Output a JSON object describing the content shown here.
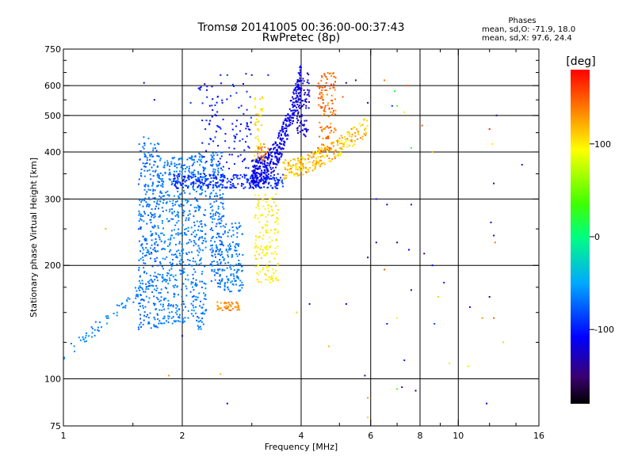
{
  "header": {
    "title_line1": "Tromsø 20141005 00:36:00-00:37:43",
    "title_line2": "RwPretec (8p)",
    "phases_label": "Phases",
    "phase_o": "mean, sd,O: -71.9, 18.0",
    "phase_x": "mean, sd,X:  97.6, 24.4"
  },
  "colorbar": {
    "label": "[deg]",
    "tick_labels": [
      "100",
      "0",
      "-100"
    ],
    "tick_values": [
      100,
      0,
      -100
    ],
    "range": [
      -180,
      180
    ]
  },
  "chart_data": {
    "type": "scatter",
    "xlabel": "Frequency [MHz]",
    "ylabel": "Stationary phase Virtual Height [km]",
    "xscale": "log",
    "yscale": "log",
    "xlim": [
      1,
      16
    ],
    "ylim": [
      75,
      750
    ],
    "xticks": [
      1,
      2,
      4,
      6,
      8,
      10,
      16
    ],
    "xtick_labels": [
      "1",
      "2",
      "4",
      "6",
      "8",
      "10",
      "16"
    ],
    "xgrid": [
      2,
      4,
      6,
      8,
      10
    ],
    "xminor": [
      1.5,
      3,
      5,
      7,
      9,
      12,
      14
    ],
    "yticks": [
      75,
      100,
      200,
      300,
      400,
      500,
      600,
      750
    ],
    "ytick_labels": [
      "75",
      "100",
      "200",
      "300",
      "400",
      "500",
      "600",
      "750"
    ],
    "ygrid": [
      100,
      200,
      300,
      400,
      500,
      600
    ],
    "yminor": [
      125,
      150,
      175,
      250,
      350,
      450,
      550,
      650,
      700
    ],
    "grid": true,
    "clusters": [
      {
        "name": "O low F-trace",
        "f": [
          1.0,
          1.7
        ],
        "h": [
          115,
          185
        ],
        "phase": [
          -70,
          -55
        ],
        "n": 70,
        "curve": "rise"
      },
      {
        "name": "O F1 band 1",
        "f": [
          1.55,
          1.75
        ],
        "h": [
          135,
          440
        ],
        "phase": [
          -80,
          -60
        ],
        "n": 320
      },
      {
        "name": "O F1 band 2",
        "f": [
          1.75,
          2.05
        ],
        "h": [
          140,
          390
        ],
        "phase": [
          -75,
          -55
        ],
        "n": 360
      },
      {
        "name": "O F1 band 3",
        "f": [
          2.05,
          2.3
        ],
        "h": [
          135,
          400
        ],
        "phase": [
          -78,
          -55
        ],
        "n": 260
      },
      {
        "name": "O F1 band 4",
        "f": [
          2.35,
          2.55
        ],
        "h": [
          175,
          400
        ],
        "phase": [
          -80,
          -60
        ],
        "n": 200
      },
      {
        "name": "O F1 band 5",
        "f": [
          2.55,
          2.85
        ],
        "h": [
          170,
          260
        ],
        "phase": [
          -72,
          -58
        ],
        "n": 120
      },
      {
        "name": "O F2 base",
        "f": [
          1.9,
          3.6
        ],
        "h": [
          320,
          350
        ],
        "phase": [
          -105,
          -85
        ],
        "n": 260
      },
      {
        "name": "O F2 rise",
        "f": [
          3.0,
          4.0
        ],
        "h": [
          350,
          640
        ],
        "phase": [
          -125,
          -100
        ],
        "n": 420,
        "curve": "cusp"
      },
      {
        "name": "O F2 upper",
        "f": [
          2.2,
          3.0
        ],
        "h": [
          360,
          620
        ],
        "phase": [
          -110,
          -90
        ],
        "n": 110
      },
      {
        "name": "O cusp top",
        "f": [
          3.9,
          4.2
        ],
        "h": [
          440,
          650
        ],
        "phase": [
          -130,
          -115
        ],
        "n": 90
      },
      {
        "name": "X F2 trace",
        "f": [
          3.6,
          5.9
        ],
        "h": [
          360,
          470
        ],
        "phase": [
          90,
          140
        ],
        "n": 260,
        "curve": "xrise"
      },
      {
        "name": "X F2 upper",
        "f": [
          4.4,
          4.9
        ],
        "h": [
          400,
          650
        ],
        "phase": [
          125,
          160
        ],
        "n": 120
      },
      {
        "name": "X F1 lower",
        "f": [
          3.05,
          3.5
        ],
        "h": [
          180,
          310
        ],
        "phase": [
          90,
          110
        ],
        "n": 150
      },
      {
        "name": "X F1 spur",
        "f": [
          3.05,
          3.2
        ],
        "h": [
          380,
          560
        ],
        "phase": [
          95,
          115
        ],
        "n": 40
      },
      {
        "name": "X low echoes",
        "f": [
          2.45,
          2.8
        ],
        "h": [
          152,
          160
        ],
        "phase": [
          125,
          145
        ],
        "n": 45
      },
      {
        "name": "X orange spur",
        "f": [
          3.1,
          3.3
        ],
        "h": [
          380,
          420
        ],
        "phase": [
          135,
          150
        ],
        "n": 25
      }
    ],
    "scatter_points": [
      {
        "f": 1.6,
        "h": 610,
        "phase": -120
      },
      {
        "f": 1.7,
        "h": 550,
        "phase": -110
      },
      {
        "f": 2.1,
        "h": 540,
        "phase": -90
      },
      {
        "f": 2.5,
        "h": 640,
        "phase": -100
      },
      {
        "f": 2.6,
        "h": 640,
        "phase": -90
      },
      {
        "f": 2.9,
        "h": 645,
        "phase": -100
      },
      {
        "f": 3.0,
        "h": 640,
        "phase": -120
      },
      {
        "f": 3.3,
        "h": 640,
        "phase": -100
      },
      {
        "f": 5.5,
        "h": 620,
        "phase": -140
      },
      {
        "f": 5.9,
        "h": 540,
        "phase": -140
      },
      {
        "f": 6.5,
        "h": 620,
        "phase": 140
      },
      {
        "f": 7.4,
        "h": 600,
        "phase": 150
      },
      {
        "f": 6.8,
        "h": 530,
        "phase": -90
      },
      {
        "f": 7.0,
        "h": 530,
        "phase": 40
      },
      {
        "f": 8.1,
        "h": 470,
        "phase": 150
      },
      {
        "f": 8.6,
        "h": 400,
        "phase": 120
      },
      {
        "f": 7.6,
        "h": 410,
        "phase": 20
      },
      {
        "f": 12.0,
        "h": 460,
        "phase": 170
      },
      {
        "f": 12.5,
        "h": 500,
        "phase": -140
      },
      {
        "f": 12.2,
        "h": 420,
        "phase": 100
      },
      {
        "f": 14.5,
        "h": 370,
        "phase": -100
      },
      {
        "f": 12.3,
        "h": 330,
        "phase": -150
      },
      {
        "f": 6.2,
        "h": 300,
        "phase": -100
      },
      {
        "f": 6.6,
        "h": 290,
        "phase": -110
      },
      {
        "f": 7.6,
        "h": 290,
        "phase": -100
      },
      {
        "f": 6.2,
        "h": 230,
        "phase": -130
      },
      {
        "f": 7.0,
        "h": 230,
        "phase": -140
      },
      {
        "f": 7.5,
        "h": 220,
        "phase": -110
      },
      {
        "f": 8.2,
        "h": 215,
        "phase": -150
      },
      {
        "f": 12.3,
        "h": 240,
        "phase": -120
      },
      {
        "f": 12.1,
        "h": 260,
        "phase": -130
      },
      {
        "f": 12.4,
        "h": 230,
        "phase": 140
      },
      {
        "f": 1.28,
        "h": 250,
        "phase": 120
      },
      {
        "f": 5.9,
        "h": 210,
        "phase": -140
      },
      {
        "f": 6.5,
        "h": 195,
        "phase": 150
      },
      {
        "f": 8.6,
        "h": 200,
        "phase": -110
      },
      {
        "f": 9.2,
        "h": 180,
        "phase": -100
      },
      {
        "f": 8.9,
        "h": 165,
        "phase": 110
      },
      {
        "f": 7.6,
        "h": 172,
        "phase": -120
      },
      {
        "f": 12.0,
        "h": 165,
        "phase": -140
      },
      {
        "f": 10.7,
        "h": 155,
        "phase": -110
      },
      {
        "f": 5.2,
        "h": 158,
        "phase": -110
      },
      {
        "f": 4.2,
        "h": 158,
        "phase": -100
      },
      {
        "f": 3.9,
        "h": 150,
        "phase": 110
      },
      {
        "f": 7.0,
        "h": 145,
        "phase": 100
      },
      {
        "f": 6.6,
        "h": 140,
        "phase": -100
      },
      {
        "f": 8.7,
        "h": 140,
        "phase": -80
      },
      {
        "f": 12.3,
        "h": 145,
        "phase": 150
      },
      {
        "f": 11.5,
        "h": 145,
        "phase": 130
      },
      {
        "f": 2.0,
        "h": 130,
        "phase": -120
      },
      {
        "f": 4.7,
        "h": 122,
        "phase": 120
      },
      {
        "f": 13.0,
        "h": 125,
        "phase": 110
      },
      {
        "f": 7.3,
        "h": 112,
        "phase": -100
      },
      {
        "f": 9.5,
        "h": 110,
        "phase": 80
      },
      {
        "f": 10.6,
        "h": 108,
        "phase": 80
      },
      {
        "f": 2.5,
        "h": 103,
        "phase": 120
      },
      {
        "f": 1.85,
        "h": 102,
        "phase": 130
      },
      {
        "f": 5.8,
        "h": 102,
        "phase": -140
      },
      {
        "f": 7.2,
        "h": 95,
        "phase": -150
      },
      {
        "f": 7.8,
        "h": 93,
        "phase": -160
      },
      {
        "f": 7.0,
        "h": 94,
        "phase": 40
      },
      {
        "f": 5.9,
        "h": 89,
        "phase": 130
      },
      {
        "f": 2.6,
        "h": 86,
        "phase": -110
      },
      {
        "f": 11.8,
        "h": 86,
        "phase": -110
      },
      {
        "f": 5.9,
        "h": 79,
        "phase": 110
      },
      {
        "f": 2.2,
        "h": 590,
        "phase": -100
      },
      {
        "f": 6.9,
        "h": 580,
        "phase": 20
      },
      {
        "f": 7.3,
        "h": 510,
        "phase": 100
      },
      {
        "f": 5.2,
        "h": 610,
        "phase": -130
      },
      {
        "f": 5.1,
        "h": 560,
        "phase": 150
      }
    ]
  }
}
